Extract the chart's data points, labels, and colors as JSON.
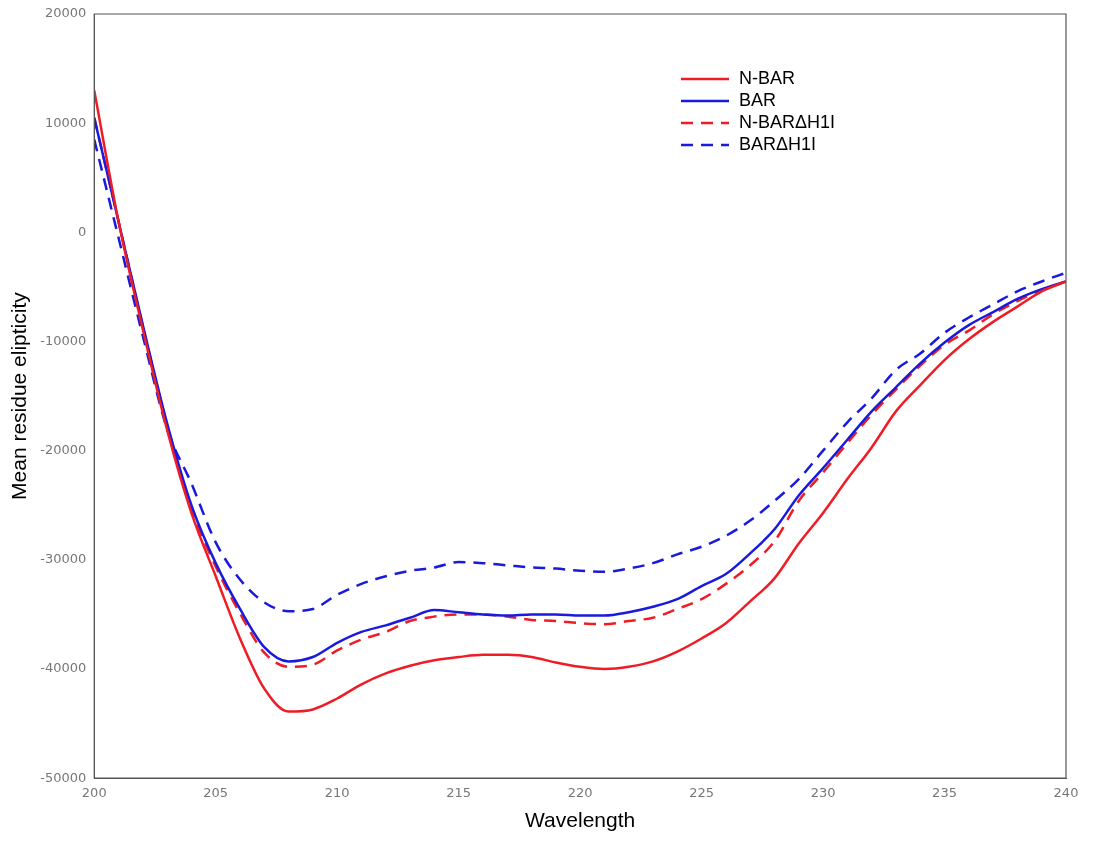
{
  "chart_data": {
    "type": "line",
    "xlabel": "Wavelength",
    "ylabel": "Mean residue elipticity",
    "x": [
      200,
      201,
      202,
      203,
      204,
      205,
      206,
      207,
      208,
      209,
      210,
      211,
      212,
      213,
      214,
      215,
      216,
      217,
      218,
      219,
      220,
      221,
      222,
      223,
      224,
      225,
      226,
      227,
      228,
      229,
      230,
      231,
      232,
      233,
      234,
      235,
      236,
      237,
      238,
      239,
      240
    ],
    "xlim": [
      200,
      240
    ],
    "xticks": [
      200,
      205,
      210,
      215,
      220,
      225,
      230,
      235,
      240
    ],
    "ylim": [
      -50000,
      20000
    ],
    "yticks": [
      -50000,
      -40000,
      -30000,
      -20000,
      -10000,
      0,
      10000,
      20000
    ],
    "grid": false,
    "legend": "top right",
    "marker": "none",
    "series": [
      {
        "name": "N-BAR",
        "color": "#ee1c25",
        "line_style": "solid",
        "values": [
          13000,
          1000,
          -8900,
          -18100,
          -25700,
          -31500,
          -37200,
          -41800,
          -43900,
          -43700,
          -42700,
          -41400,
          -40400,
          -39700,
          -39200,
          -38900,
          -38700,
          -38700,
          -38900,
          -39400,
          -39800,
          -40000,
          -39800,
          -39300,
          -38400,
          -37200,
          -35800,
          -33800,
          -31700,
          -28500,
          -25700,
          -22600,
          -19700,
          -16400,
          -14000,
          -11700,
          -9800,
          -8200,
          -6800,
          -5400,
          -4500
        ]
      },
      {
        "name": "BAR",
        "color": "#1a1adc",
        "line_style": "solid",
        "values": [
          10500,
          1000,
          -8500,
          -17500,
          -25000,
          -30300,
          -34500,
          -38000,
          -39300,
          -38900,
          -37600,
          -36600,
          -36000,
          -35300,
          -34600,
          -34800,
          -35000,
          -35100,
          -35000,
          -35000,
          -35100,
          -35100,
          -34800,
          -34300,
          -33600,
          -32400,
          -31300,
          -29400,
          -27200,
          -24100,
          -21600,
          -19000,
          -16400,
          -14200,
          -12000,
          -10100,
          -8500,
          -7300,
          -6100,
          -5200,
          -4500
        ]
      },
      {
        "name": "N-BARΔH1I",
        "color": "#ee1c25",
        "line_style": "dashed",
        "values": [
          10500,
          1000,
          -8600,
          -17700,
          -25300,
          -30600,
          -34900,
          -38500,
          -39800,
          -39600,
          -38300,
          -37300,
          -36600,
          -35600,
          -35200,
          -35000,
          -35000,
          -35200,
          -35500,
          -35600,
          -35800,
          -35900,
          -35600,
          -35300,
          -34500,
          -33600,
          -32200,
          -30500,
          -28300,
          -24600,
          -22000,
          -19300,
          -16700,
          -14400,
          -12200,
          -10300,
          -9000,
          -7500,
          -6300,
          -5300,
          -4500
        ]
      },
      {
        "name": "BARΔH1I",
        "color": "#1a1adc",
        "line_style": "dashed",
        "values": [
          8500,
          -500,
          -9500,
          -18000,
          -23000,
          -28400,
          -31800,
          -33900,
          -34700,
          -34500,
          -33200,
          -32200,
          -31500,
          -31000,
          -30700,
          -30200,
          -30300,
          -30500,
          -30700,
          -30800,
          -31000,
          -31100,
          -30800,
          -30300,
          -29500,
          -28800,
          -27800,
          -26400,
          -24600,
          -22600,
          -20000,
          -17400,
          -15200,
          -12600,
          -11100,
          -9200,
          -7800,
          -6600,
          -5400,
          -4500,
          -3700
        ]
      }
    ]
  }
}
